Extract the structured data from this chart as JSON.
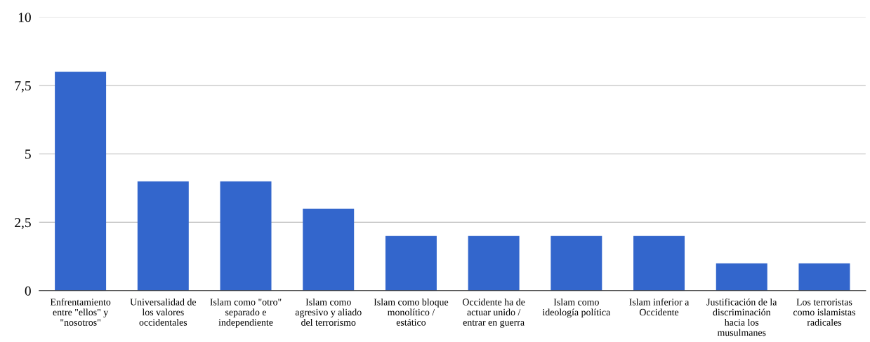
{
  "chart_data": {
    "type": "bar",
    "categories": [
      "Enfrentamiento\nentre \"ellos\" y\n\"nosotros\"",
      "Universalidad de\nlos valores\noccidentales",
      "Islam como \"otro\"\nseparado e\nindependiente",
      "Islam como\nagresivo y aliado\ndel terrorismo",
      "Islam como bloque\nmonolítico /\nestático",
      "Occidente ha de\nactuar unido /\nentrar en guerra",
      "Islam como\nideología política",
      "Islam inferior a\nOccidente",
      "Justificación de la\ndiscriminación\nhacia los\nmusulmanes",
      "Los terroristas\ncomo islamistas\nradicales"
    ],
    "values": [
      8,
      4,
      4,
      3,
      2,
      2,
      2,
      2,
      1,
      1
    ],
    "color": "#3366cc",
    "ylim": [
      0,
      10
    ],
    "yticks": [
      0,
      {
        "value": 2.5,
        "label": "2,5"
      },
      5,
      {
        "value": 7.5,
        "label": "7,5"
      },
      10
    ],
    "grid": "y"
  }
}
